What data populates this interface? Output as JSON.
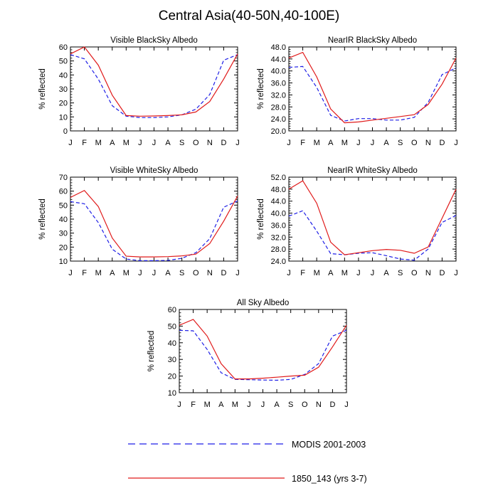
{
  "title": "Central Asia(40-50N,40-100E)",
  "legend": {
    "modis_label": "MODIS 2001-2003",
    "model_label": "1850_143 (yrs 3-7)",
    "modis_color": "#1f1fe6",
    "model_color": "#e01a1a"
  },
  "chart_data": [
    {
      "id": "vis-black",
      "type": "line",
      "title": "Visible BlackSky Albedo",
      "xlabel": "",
      "ylabel": "% reflected",
      "categories": [
        "J",
        "F",
        "M",
        "A",
        "M",
        "J",
        "J",
        "A",
        "S",
        "O",
        "N",
        "D",
        "J"
      ],
      "ylim": [
        0,
        60
      ],
      "yticks": [
        "0",
        "10",
        "20",
        "30",
        "40",
        "50",
        "60"
      ],
      "series": [
        {
          "name": "MODIS 2001-2003",
          "style": "dashed",
          "values": [
            54.5,
            51.5,
            37,
            18,
            10.5,
            9.5,
            9.5,
            10,
            11.5,
            15.5,
            26,
            50.5,
            54.5
          ]
        },
        {
          "name": "1850_143 (yrs 3-7)",
          "style": "solid",
          "values": [
            55,
            60,
            47,
            25.5,
            11,
            10.5,
            10.7,
            11,
            11.5,
            13.5,
            21,
            37,
            55
          ]
        }
      ]
    },
    {
      "id": "nir-black",
      "type": "line",
      "title": "NearIR BlackSky Albedo",
      "xlabel": "",
      "ylabel": "% reflected",
      "categories": [
        "J",
        "F",
        "M",
        "A",
        "M",
        "J",
        "J",
        "A",
        "S",
        "O",
        "N",
        "D",
        "J"
      ],
      "ylim": [
        20,
        48
      ],
      "yticks": [
        "20.0",
        "24.0",
        "28.0",
        "32.0",
        "36.0",
        "40.0",
        "44.0",
        "48.0"
      ],
      "series": [
        {
          "name": "MODIS 2001-2003",
          "style": "dashed",
          "values": [
            41.2,
            41.5,
            34.5,
            25.2,
            23.3,
            24.1,
            24.1,
            23.6,
            23.6,
            24.5,
            29.5,
            38.8,
            41
          ]
        },
        {
          "name": "1850_143 (yrs 3-7)",
          "style": "solid",
          "values": [
            44.3,
            46.2,
            38,
            27.3,
            22.7,
            23,
            23.6,
            24.2,
            24.8,
            25.4,
            28.8,
            35.6,
            44.3
          ]
        }
      ]
    },
    {
      "id": "vis-white",
      "type": "line",
      "title": "Visible WhiteSky Albedo",
      "xlabel": "",
      "ylabel": "% reflected",
      "categories": [
        "J",
        "F",
        "M",
        "A",
        "M",
        "J",
        "J",
        "A",
        "S",
        "O",
        "N",
        "D",
        "J"
      ],
      "ylim": [
        10,
        70
      ],
      "yticks": [
        "10",
        "20",
        "30",
        "40",
        "50",
        "60",
        "70"
      ],
      "series": [
        {
          "name": "MODIS 2001-2003",
          "style": "dashed",
          "values": [
            52.5,
            51,
            37.5,
            18.5,
            11.5,
            10.3,
            10.3,
            10.5,
            12,
            16,
            26,
            48.5,
            53
          ]
        },
        {
          "name": "1850_143 (yrs 3-7)",
          "style": "solid",
          "values": [
            55.5,
            60.5,
            49,
            26.5,
            13.5,
            13,
            13,
            13.2,
            13.7,
            15,
            22.5,
            38.5,
            56.5
          ]
        }
      ]
    },
    {
      "id": "nir-white",
      "type": "line",
      "title": "NearIR WhiteSky Albedo",
      "xlabel": "",
      "ylabel": "% reflected",
      "categories": [
        "J",
        "F",
        "M",
        "A",
        "M",
        "J",
        "J",
        "A",
        "S",
        "O",
        "N",
        "D",
        "J"
      ],
      "ylim": [
        24,
        52
      ],
      "yticks": [
        "24.0",
        "28.0",
        "32.0",
        "36.0",
        "40.0",
        "44.0",
        "48.0",
        "52.0"
      ],
      "series": [
        {
          "name": "MODIS 2001-2003",
          "style": "dashed",
          "values": [
            39,
            40.8,
            34,
            26.5,
            26.1,
            26.6,
            26.8,
            25.8,
            24.7,
            24.3,
            28,
            36.9,
            39.2
          ]
        },
        {
          "name": "1850_143 (yrs 3-7)",
          "style": "solid",
          "values": [
            48,
            50.8,
            43.3,
            30.3,
            26.1,
            26.8,
            27.5,
            27.9,
            27.6,
            26.6,
            28.7,
            38.3,
            48
          ]
        }
      ]
    },
    {
      "id": "all-sky",
      "type": "line",
      "title": "All Sky Albedo",
      "xlabel": "",
      "ylabel": "% reflected",
      "categories": [
        "J",
        "F",
        "M",
        "A",
        "M",
        "J",
        "J",
        "A",
        "S",
        "O",
        "N",
        "D",
        "J"
      ],
      "ylim": [
        10,
        60
      ],
      "yticks": [
        "10",
        "20",
        "30",
        "40",
        "50",
        "60"
      ],
      "series": [
        {
          "name": "MODIS 2001-2003",
          "style": "dashed",
          "values": [
            47.5,
            47.2,
            36,
            22,
            18,
            17.8,
            17.6,
            17.5,
            18,
            21,
            27.5,
            44,
            47.5
          ]
        },
        {
          "name": "1850_143 (yrs 3-7)",
          "style": "solid",
          "values": [
            50.5,
            54,
            44,
            27.5,
            18.3,
            18.3,
            18.7,
            19.3,
            20,
            20.5,
            25.3,
            37.5,
            50.5
          ]
        }
      ]
    }
  ]
}
